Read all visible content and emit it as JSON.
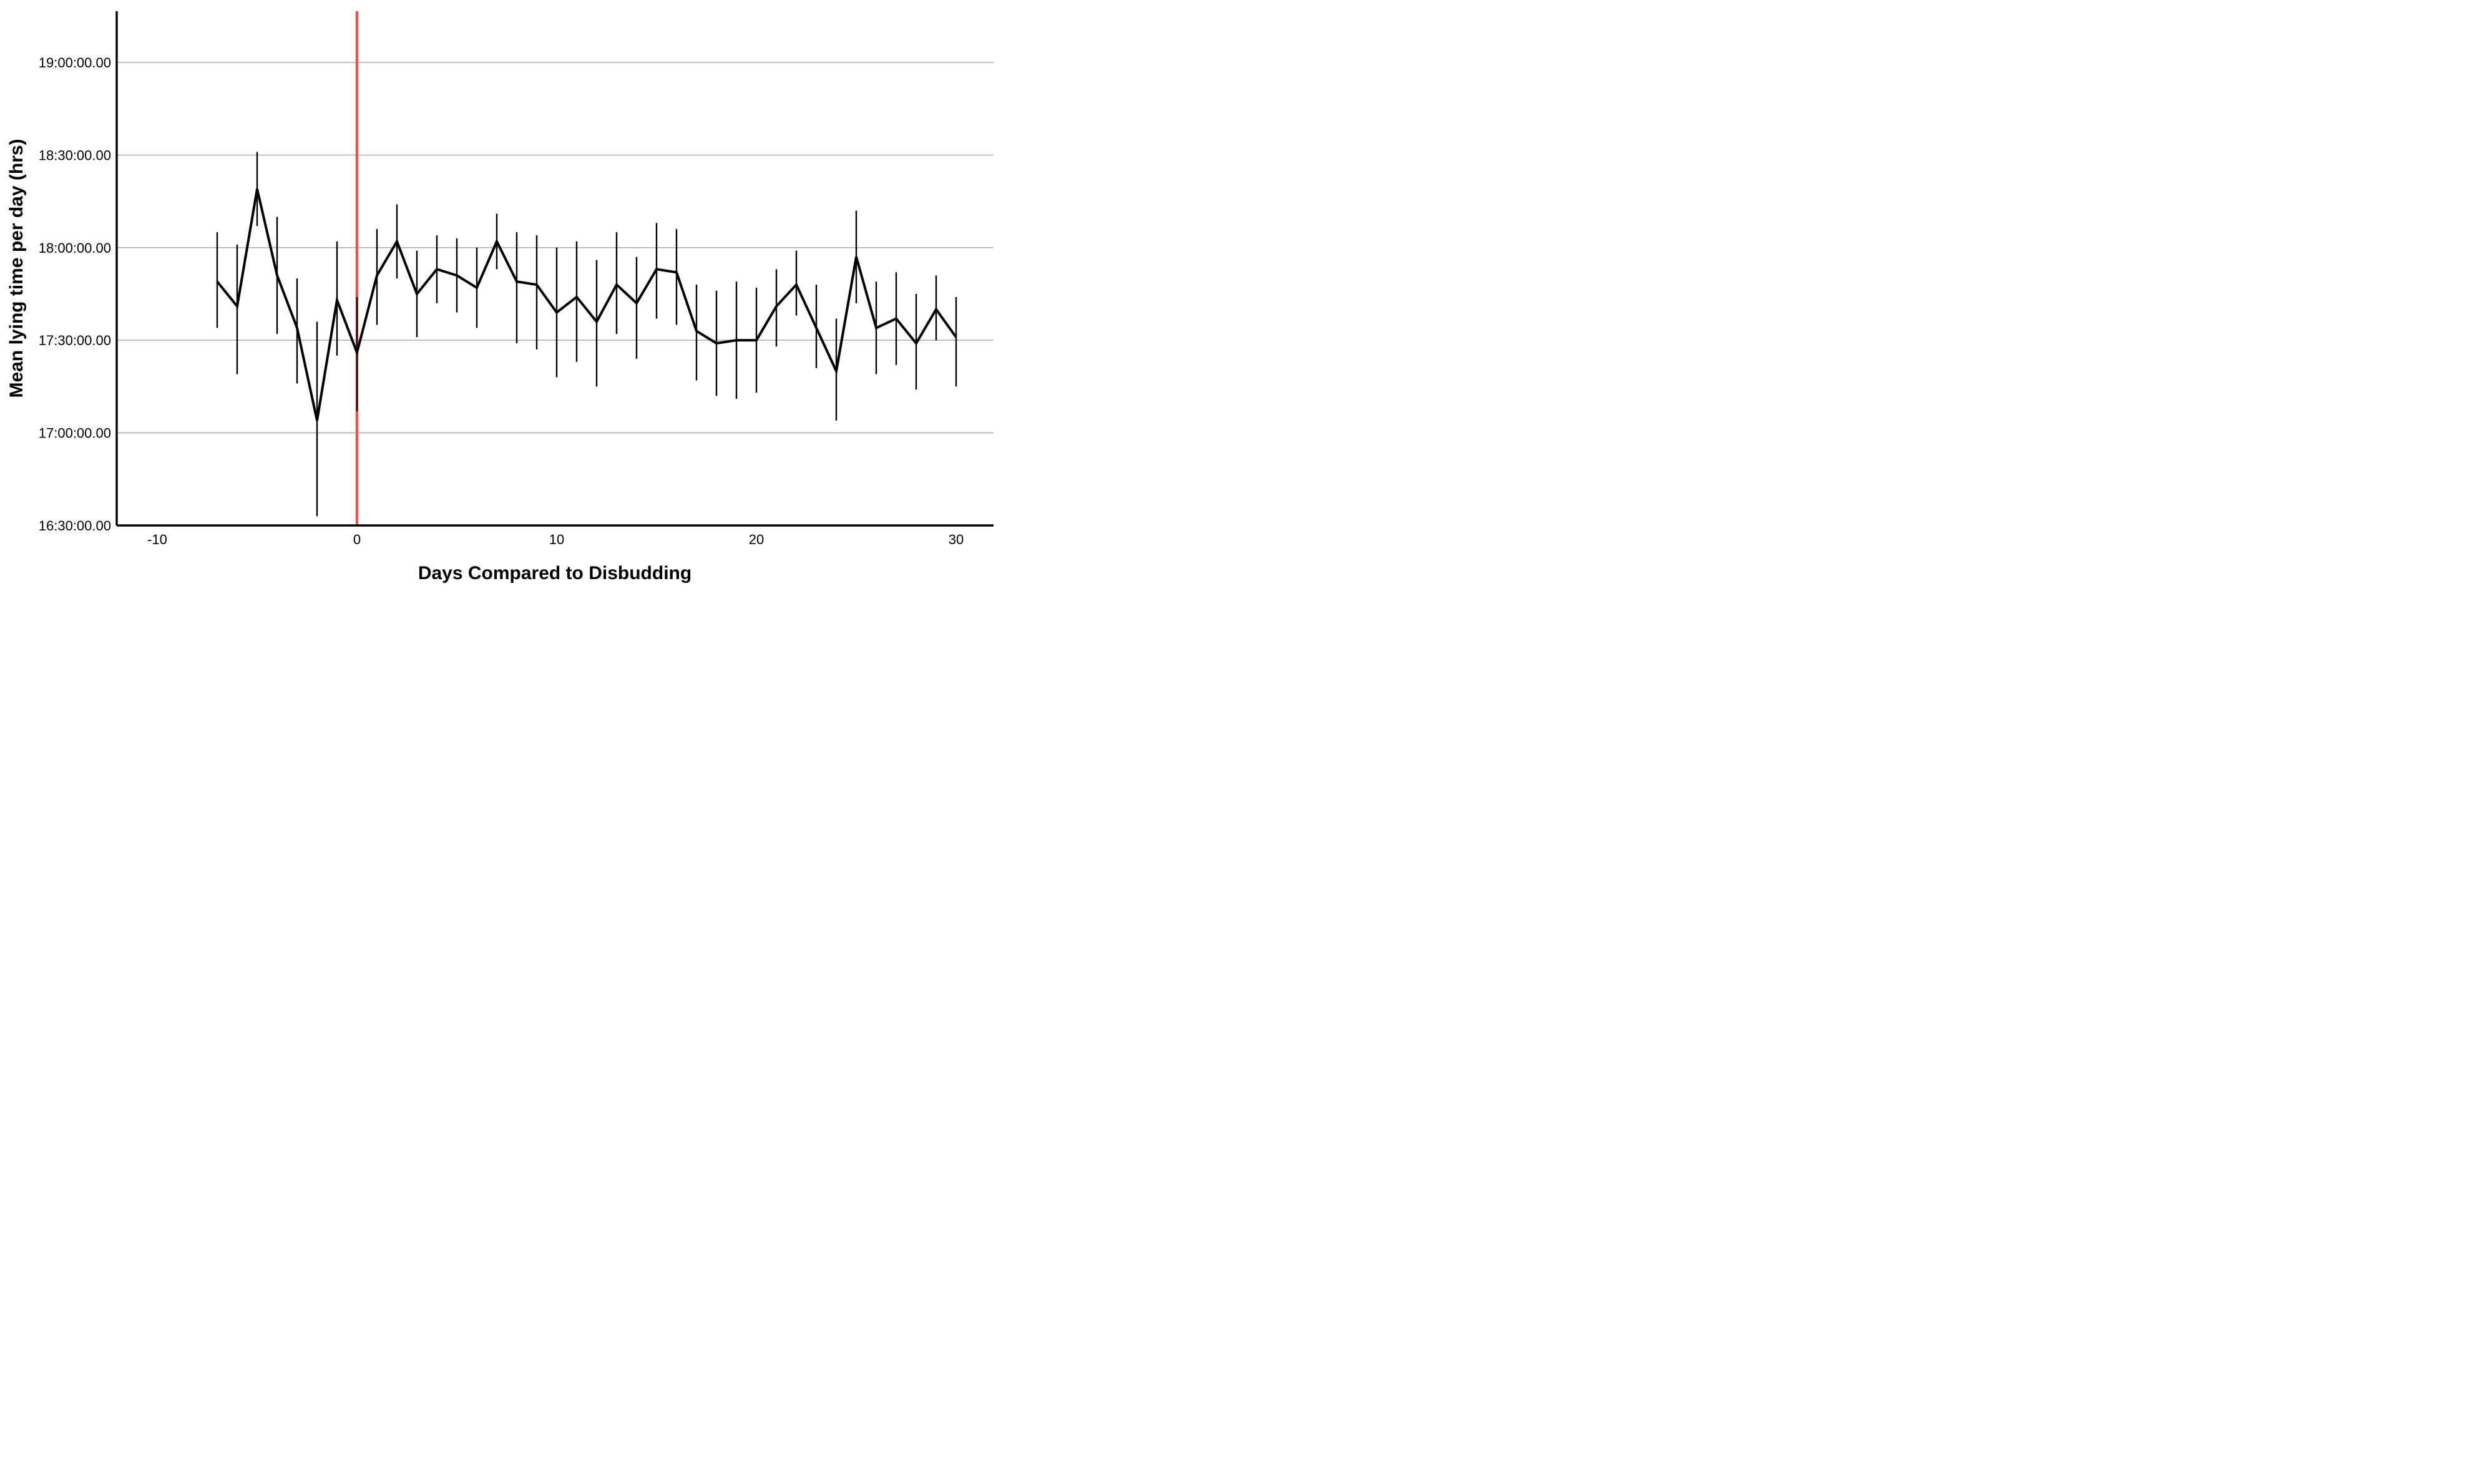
{
  "chart_data": {
    "type": "line",
    "title": "",
    "xlabel": "Days Compared to Disbudding",
    "ylabel": "Mean lying time per day (hrs)",
    "legend": false,
    "grid": true,
    "x_ticks": [
      "-10",
      "0",
      "10",
      "20",
      "30"
    ],
    "x_tick_values": [
      -10,
      0,
      10,
      20,
      30
    ],
    "x_axis_range_days": [
      -12,
      31.6
    ],
    "y_ticks": [
      "19:00:00.00",
      "18:30:00.00",
      "18:00:00.00",
      "17:30:00.00",
      "17:00:00.00",
      "16:30:00.00"
    ],
    "y_tick_minutes_past_1630": [
      150,
      120,
      90,
      60,
      30,
      0
    ],
    "y_range_minutes_past_1630": [
      0,
      150
    ],
    "colors": {
      "line": "#000000",
      "error_bar": "#000000",
      "axis": "#000000",
      "gridline": "#b0b0b0",
      "reference_line": "#ee5253",
      "background": "#ffffff"
    },
    "reference_line_x_day": 0,
    "error_bar_style": "no-caps",
    "points": [
      {
        "day": -7,
        "mean": "17:49",
        "lo": "17:34",
        "hi": "18:05"
      },
      {
        "day": -6,
        "mean": "17:41",
        "lo": "17:19",
        "hi": "18:01"
      },
      {
        "day": -5,
        "mean": "18:19",
        "lo": "18:07",
        "hi": "18:31"
      },
      {
        "day": -4,
        "mean": "17:51",
        "lo": "17:32",
        "hi": "18:10"
      },
      {
        "day": -3,
        "mean": "17:34",
        "lo": "17:16",
        "hi": "17:50"
      },
      {
        "day": -2,
        "mean": "17:04",
        "lo": "16:33",
        "hi": "17:36"
      },
      {
        "day": -1,
        "mean": "17:43",
        "lo": "17:25",
        "hi": "18:02"
      },
      {
        "day": 0,
        "mean": "17:26",
        "lo": "17:07",
        "hi": "17:44"
      },
      {
        "day": 1,
        "mean": "17:51",
        "lo": "17:35",
        "hi": "18:06"
      },
      {
        "day": 2,
        "mean": "18:02",
        "lo": "17:50",
        "hi": "18:14"
      },
      {
        "day": 3,
        "mean": "17:45",
        "lo": "17:31",
        "hi": "17:59"
      },
      {
        "day": 4,
        "mean": "17:53",
        "lo": "17:42",
        "hi": "18:04"
      },
      {
        "day": 5,
        "mean": "17:51",
        "lo": "17:39",
        "hi": "18:03"
      },
      {
        "day": 6,
        "mean": "17:47",
        "lo": "17:34",
        "hi": "18:00"
      },
      {
        "day": 7,
        "mean": "18:02",
        "lo": "17:53",
        "hi": "18:11"
      },
      {
        "day": 8,
        "mean": "17:49",
        "lo": "17:29",
        "hi": "18:05"
      },
      {
        "day": 9,
        "mean": "17:48",
        "lo": "17:27",
        "hi": "18:04"
      },
      {
        "day": 10,
        "mean": "17:39",
        "lo": "17:18",
        "hi": "18:00"
      },
      {
        "day": 11,
        "mean": "17:44",
        "lo": "17:23",
        "hi": "18:02"
      },
      {
        "day": 12,
        "mean": "17:36",
        "lo": "17:15",
        "hi": "17:56"
      },
      {
        "day": 13,
        "mean": "17:48",
        "lo": "17:32",
        "hi": "18:05"
      },
      {
        "day": 14,
        "mean": "17:42",
        "lo": "17:24",
        "hi": "17:57"
      },
      {
        "day": 15,
        "mean": "17:53",
        "lo": "17:37",
        "hi": "18:08"
      },
      {
        "day": 16,
        "mean": "17:52",
        "lo": "17:35",
        "hi": "18:06"
      },
      {
        "day": 17,
        "mean": "17:33",
        "lo": "17:17",
        "hi": "17:48"
      },
      {
        "day": 18,
        "mean": "17:29",
        "lo": "17:12",
        "hi": "17:46"
      },
      {
        "day": 19,
        "mean": "17:30",
        "lo": "17:11",
        "hi": "17:49"
      },
      {
        "day": 20,
        "mean": "17:30",
        "lo": "17:13",
        "hi": "17:47"
      },
      {
        "day": 21,
        "mean": "17:41",
        "lo": "17:28",
        "hi": "17:53"
      },
      {
        "day": 22,
        "mean": "17:48",
        "lo": "17:38",
        "hi": "17:59"
      },
      {
        "day": 23,
        "mean": "17:34",
        "lo": "17:21",
        "hi": "17:48"
      },
      {
        "day": 24,
        "mean": "17:20",
        "lo": "17:04",
        "hi": "17:37"
      },
      {
        "day": 25,
        "mean": "17:57",
        "lo": "17:42",
        "hi": "18:12"
      },
      {
        "day": 26,
        "mean": "17:34",
        "lo": "17:19",
        "hi": "17:49"
      },
      {
        "day": 27,
        "mean": "17:37",
        "lo": "17:22",
        "hi": "17:52"
      },
      {
        "day": 28,
        "mean": "17:29",
        "lo": "17:14",
        "hi": "17:45"
      },
      {
        "day": 29,
        "mean": "17:40",
        "lo": "17:30",
        "hi": "17:51"
      },
      {
        "day": 30,
        "mean": "17:31",
        "lo": "17:15",
        "hi": "17:44"
      }
    ]
  }
}
